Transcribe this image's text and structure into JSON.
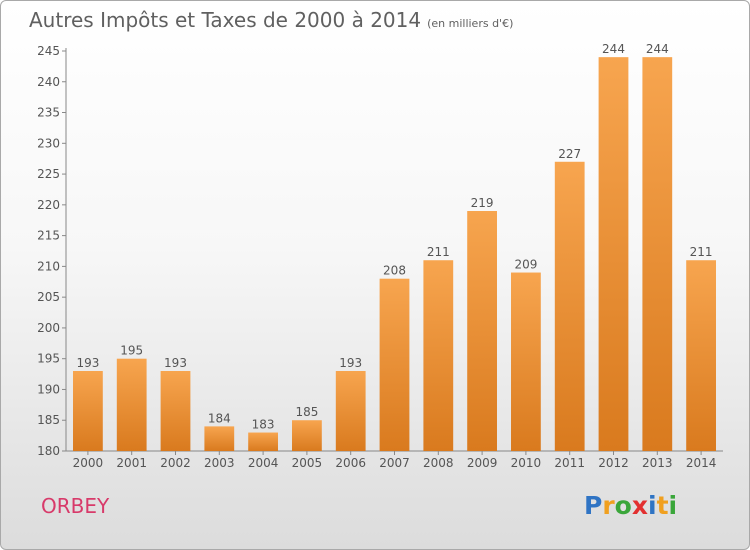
{
  "title": "Autres Impôts et Taxes de 2000 à 2014",
  "subtitle": "(en milliers d'€)",
  "commune": "ORBEY",
  "logo": {
    "letters": [
      "P",
      "r",
      "o",
      "x",
      "i",
      "t",
      "i"
    ],
    "colors": [
      "#2f74c4",
      "#f0a020",
      "#3aa63a",
      "#e23030",
      "#2f74c4",
      "#f0a020",
      "#3aa63a"
    ]
  },
  "colors": {
    "bar_light": "#f7a54f",
    "bar_dark": "#d97a1e",
    "text": "#555555",
    "commune": "#d83a6a"
  },
  "chart_data": {
    "type": "bar",
    "categories": [
      "2000",
      "2001",
      "2002",
      "2003",
      "2004",
      "2005",
      "2006",
      "2007",
      "2008",
      "2009",
      "2010",
      "2011",
      "2012",
      "2013",
      "2014"
    ],
    "values": [
      193,
      195,
      193,
      184,
      183,
      185,
      193,
      208,
      211,
      219,
      209,
      227,
      244,
      244,
      211
    ],
    "ylim": [
      180,
      245
    ],
    "yticks": [
      180,
      185,
      190,
      195,
      200,
      205,
      210,
      215,
      220,
      225,
      230,
      235,
      240,
      245
    ],
    "grid": false,
    "xlabel": "",
    "ylabel": ""
  }
}
